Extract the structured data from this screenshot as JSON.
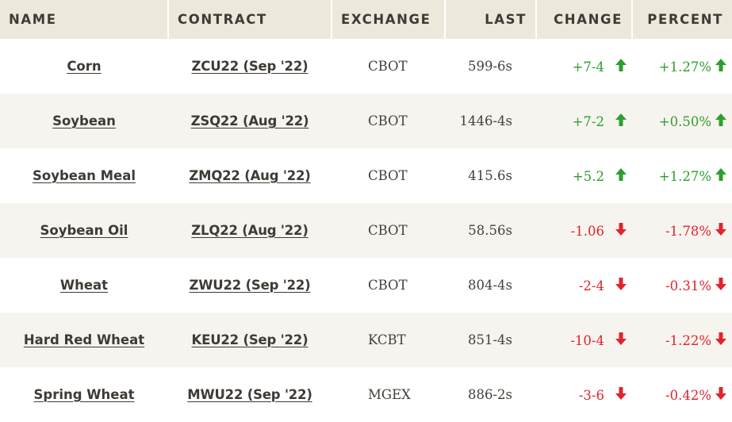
{
  "colors": {
    "header_bg": "#ede8dc",
    "row_alt_bg": "#f6f4ef",
    "up": "#2e9e2e",
    "down": "#e1242b",
    "text": "#3f3a35"
  },
  "table": {
    "headers": {
      "name": "NAME",
      "contract": "CONTRACT",
      "exchange": "EXCHANGE",
      "last": "LAST",
      "change": "CHANGE",
      "percent": "PERCENT"
    },
    "rows": [
      {
        "name": "Corn",
        "contract": "ZCU22 (Sep '22)",
        "exchange": "CBOT",
        "last": "599-6s",
        "change": "+7-4",
        "percent": "+1.27%",
        "direction": "up",
        "icon": "arrow-up-icon"
      },
      {
        "name": "Soybean",
        "contract": "ZSQ22 (Aug '22)",
        "exchange": "CBOT",
        "last": "1446-4s",
        "change": "+7-2",
        "percent": "+0.50%",
        "direction": "up",
        "icon": "arrow-up-icon"
      },
      {
        "name": "Soybean Meal",
        "contract": "ZMQ22 (Aug '22)",
        "exchange": "CBOT",
        "last": "415.6s",
        "change": "+5.2",
        "percent": "+1.27%",
        "direction": "up",
        "icon": "arrow-up-icon"
      },
      {
        "name": "Soybean Oil",
        "contract": "ZLQ22 (Aug '22)",
        "exchange": "CBOT",
        "last": "58.56s",
        "change": "-1.06",
        "percent": "-1.78%",
        "direction": "down",
        "icon": "arrow-down-icon"
      },
      {
        "name": "Wheat",
        "contract": "ZWU22 (Sep '22)",
        "exchange": "CBOT",
        "last": "804-4s",
        "change": "-2-4",
        "percent": "-0.31%",
        "direction": "down",
        "icon": "arrow-down-icon"
      },
      {
        "name": "Hard Red Wheat",
        "contract": "KEU22 (Sep '22)",
        "exchange": "KCBT",
        "last": "851-4s",
        "change": "-10-4",
        "percent": "-1.22%",
        "direction": "down",
        "icon": "arrow-down-icon"
      },
      {
        "name": "Spring Wheat",
        "contract": "MWU22 (Sep '22)",
        "exchange": "MGEX",
        "last": "886-2s",
        "change": "-3-6",
        "percent": "-0.42%",
        "direction": "down",
        "icon": "arrow-down-icon"
      }
    ]
  }
}
